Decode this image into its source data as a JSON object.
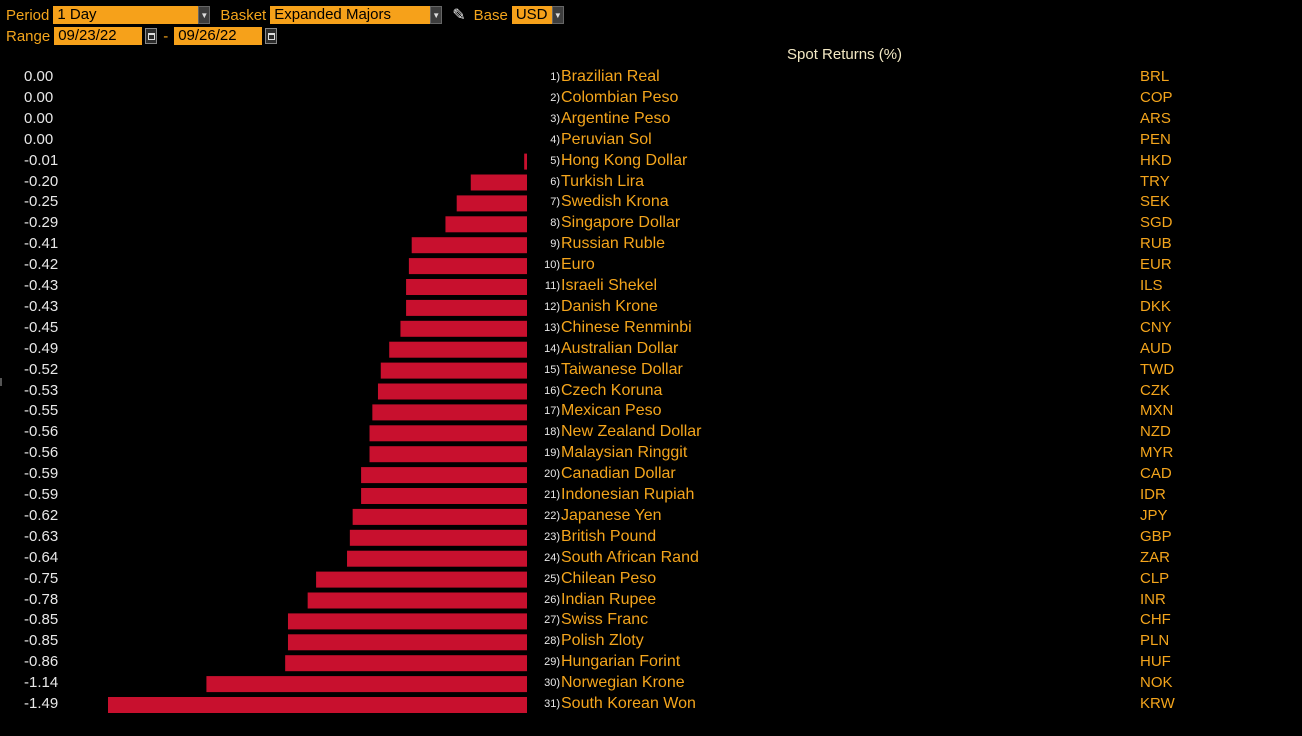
{
  "toolbar": {
    "period_label": "Period",
    "period_value": "1 Day",
    "basket_label": "Basket",
    "basket_value": "Expanded Majors",
    "base_label": "Base",
    "base_value": "USD",
    "range_label": "Range",
    "range_start": "09/23/22",
    "range_sep": "-",
    "range_end": "09/26/22"
  },
  "chart_data": {
    "type": "bar",
    "title": "Spot Returns (%)",
    "orientation": "horizontal",
    "bar_color": "#c8102e",
    "categories": [
      "Brazilian Real",
      "Colombian Peso",
      "Argentine Peso",
      "Peruvian Sol",
      "Hong Kong Dollar",
      "Turkish Lira",
      "Swedish Krona",
      "Singapore Dollar",
      "Russian Ruble",
      "Euro",
      "Israeli Shekel",
      "Danish Krone",
      "Chinese Renminbi",
      "Australian Dollar",
      "Taiwanese Dollar",
      "Czech Koruna",
      "Mexican Peso",
      "New Zealand Dollar",
      "Malaysian Ringgit",
      "Canadian Dollar",
      "Indonesian Rupiah",
      "Japanese Yen",
      "British Pound",
      "South African Rand",
      "Chilean Peso",
      "Indian Rupee",
      "Swiss Franc",
      "Polish Zloty",
      "Hungarian Forint",
      "Norwegian Krone",
      "South Korean Won"
    ],
    "codes": [
      "BRL",
      "COP",
      "ARS",
      "PEN",
      "HKD",
      "TRY",
      "SEK",
      "SGD",
      "RUB",
      "EUR",
      "ILS",
      "DKK",
      "CNY",
      "AUD",
      "TWD",
      "CZK",
      "MXN",
      "NZD",
      "MYR",
      "CAD",
      "IDR",
      "JPY",
      "GBP",
      "ZAR",
      "CLP",
      "INR",
      "CHF",
      "PLN",
      "HUF",
      "NOK",
      "KRW"
    ],
    "values": [
      0.0,
      0.0,
      0.0,
      0.0,
      -0.01,
      -0.2,
      -0.25,
      -0.29,
      -0.41,
      -0.42,
      -0.43,
      -0.43,
      -0.45,
      -0.49,
      -0.52,
      -0.53,
      -0.55,
      -0.56,
      -0.56,
      -0.59,
      -0.59,
      -0.62,
      -0.63,
      -0.64,
      -0.75,
      -0.78,
      -0.85,
      -0.85,
      -0.86,
      -1.14,
      -1.49
    ],
    "value_labels": [
      "0.00",
      "0.00",
      "0.00",
      "0.00",
      "-0.01",
      "-0.20",
      "-0.25",
      "-0.29",
      "-0.41",
      "-0.42",
      "-0.43",
      "-0.43",
      "-0.45",
      "-0.49",
      "-0.52",
      "-0.53",
      "-0.55",
      "-0.56",
      "-0.56",
      "-0.59",
      "-0.59",
      "-0.62",
      "-0.63",
      "-0.64",
      "-0.75",
      "-0.78",
      "-0.85",
      "-0.85",
      "-0.86",
      "-1.14",
      "-1.49"
    ],
    "xlim": [
      -1.49,
      0
    ]
  }
}
